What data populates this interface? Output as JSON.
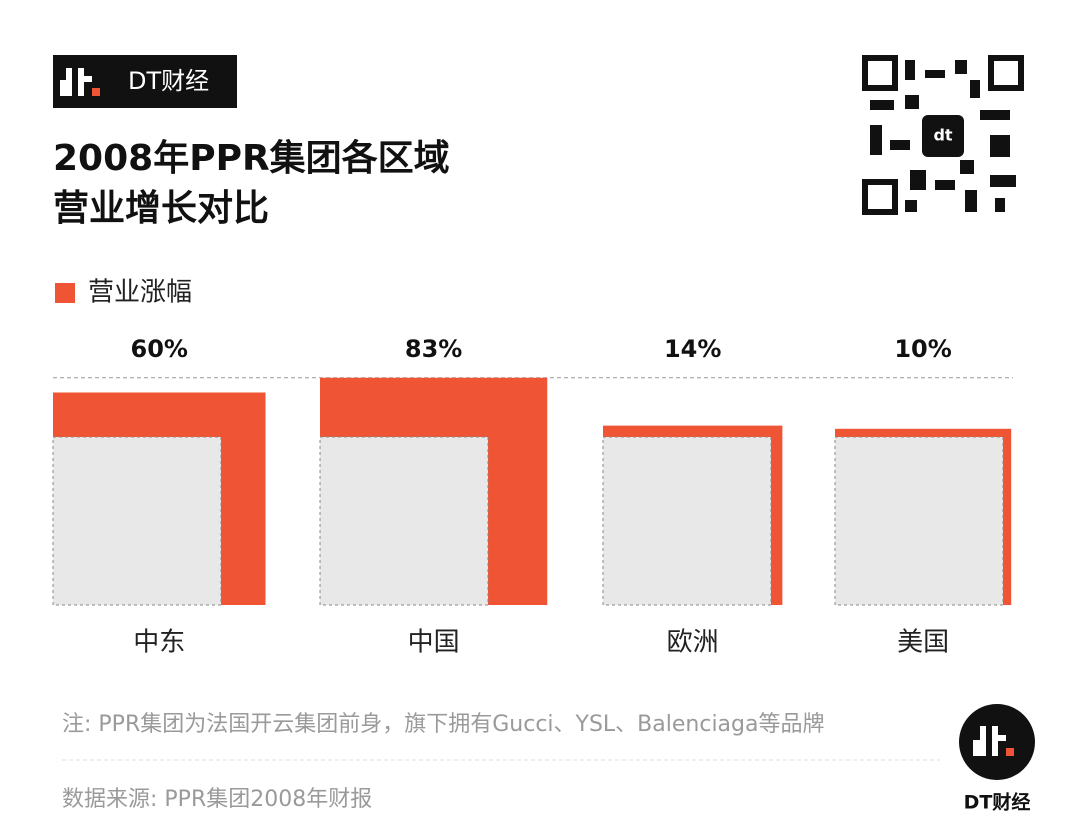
{
  "brand": "DT财经",
  "chart_data": {
    "type": "growth-square",
    "title": [
      "2008年PPR集团各区域",
      "营业增长对比"
    ],
    "categories": [
      "中东",
      "中国",
      "欧洲",
      "美国"
    ],
    "series": [
      {
        "name": "营业涨幅",
        "color": "#ef5535",
        "values": [
          60,
          83,
          14,
          10
        ],
        "value_labels": [
          "60%",
          "83%",
          "14%",
          "10%"
        ]
      }
    ],
    "base_color": "#e8e8e8",
    "note": "注: PPR集团为法国开云集团前身，旗下拥有Gucci、YSL、Balenciaga等品牌",
    "source": "数据来源: PPR集团2008年财报"
  }
}
